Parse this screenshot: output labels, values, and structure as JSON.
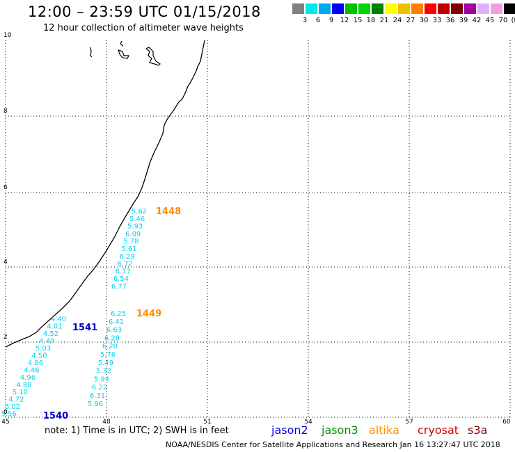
{
  "header": {
    "title": "12:00 – 23:59 UTC 01/15/2018",
    "subtitle": "12 hour collection of altimeter wave heights"
  },
  "scale": {
    "labels": [
      "3",
      "6",
      "9",
      "12",
      "15",
      "18",
      "21",
      "24",
      "27",
      "30",
      "33",
      "36",
      "39",
      "42",
      "45",
      "70"
    ],
    "unit": "(ft)",
    "colors": [
      "#808080",
      "#00e8e8",
      "#00a8f0",
      "#0000ff",
      "#00c000",
      "#00d800",
      "#008000",
      "#ffff00",
      "#f0c000",
      "#ff8000",
      "#ff0000",
      "#c00000",
      "#800000",
      "#a000a0",
      "#e0b0ff",
      "#f0a0e0",
      "#000000"
    ]
  },
  "axes": {
    "x_ticks": [
      "45",
      "48",
      "51",
      "54",
      "57",
      "60"
    ],
    "y_ticks": [
      "0",
      "2",
      "4",
      "6",
      "8",
      "10"
    ]
  },
  "tracks": [
    {
      "pass": "1540",
      "pass_color": "#0000c0",
      "obs_color": "#00d0f0",
      "values": [
        "4.40",
        "4.01",
        "4.52",
        "4.49",
        "5.03",
        "4.50",
        "4.86",
        "4.46",
        "4.96",
        "4.88",
        "5.10",
        "4.72",
        "5.02",
        "5.56"
      ]
    },
    {
      "pass": "1541",
      "pass_color": "#0000c0",
      "obs_color": "#00d0f0",
      "values": []
    },
    {
      "pass": "1448",
      "pass_color": "#ff8c00",
      "obs_color": "#00d0f0",
      "values": [
        "5.62",
        "5.46",
        "5.93",
        "6.09",
        "5.78",
        "5.61",
        "6.29",
        "6.72",
        "6.77",
        "6.54",
        "6.77"
      ]
    },
    {
      "pass": "1449",
      "pass_color": "#ff8c00",
      "obs_color": "#00d0f0",
      "values": [
        "6.25",
        "6.41",
        "6.63",
        "6.28",
        "6.20",
        "5.76",
        "5.49",
        "5.32",
        "5.94",
        "6.22",
        "6.31",
        "5.96"
      ]
    }
  ],
  "footer": {
    "note": "note:  1) Time is in UTC;  2) SWH is in feet",
    "legend": [
      {
        "label": "jason2",
        "color": "#0000e0"
      },
      {
        "label": "jason3",
        "color": "#009000"
      },
      {
        "label": "altika",
        "color": "#ff9000"
      },
      {
        "label": "cryosat",
        "color": "#d00000"
      },
      {
        "label": "s3a",
        "color": "#800000"
      }
    ],
    "credit": "NOAA/NESDIS Center for Satellite Applications and Research    Jan 16 13:27:47 UTC 2018"
  }
}
